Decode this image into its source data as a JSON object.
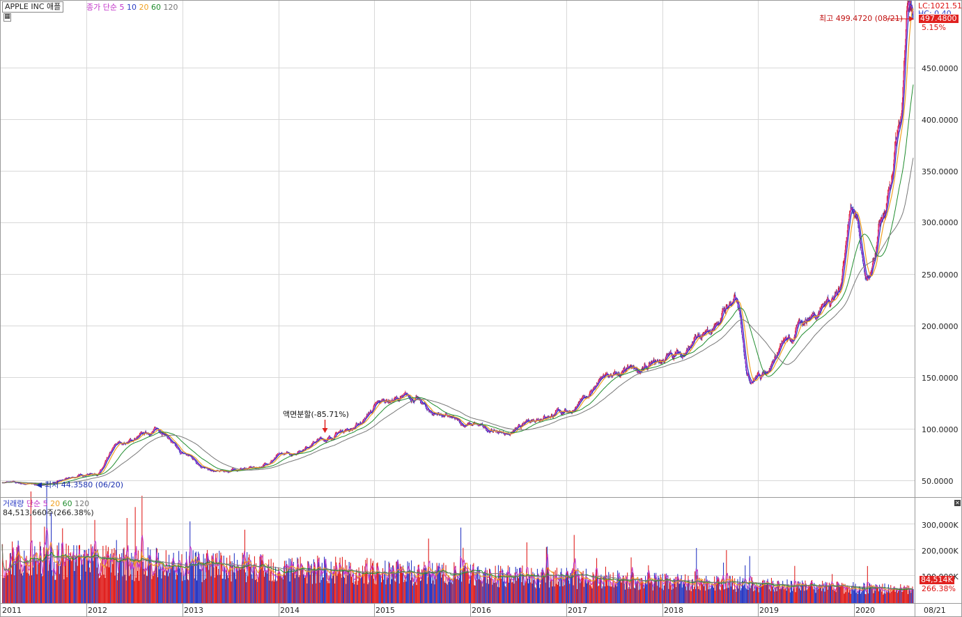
{
  "header": {
    "symbol": "APPLE INC  애플",
    "price_legend": {
      "label": "종가 단순",
      "ma": [
        "5",
        "10",
        "20",
        "60",
        "120"
      ]
    },
    "lc": "LC:1021.51",
    "hc": "HC: 0.40"
  },
  "price_panel": {
    "current_value": "497.4800",
    "current_change": "5.15%",
    "high_annotation": "최고 499.4720 (08/21)",
    "low_annotation": "최저 44.3580 (06/20)",
    "split_annotation": "액면분할(-85.71%)",
    "y_ticks": [
      "450.0000",
      "400.0000",
      "350.0000",
      "300.0000",
      "250.0000",
      "200.0000",
      "150.0000",
      "100.0000",
      "50.0000"
    ]
  },
  "volume_panel": {
    "legend": {
      "label": "거래량",
      "ma_label": "단순",
      "ma": [
        "5",
        "20",
        "60",
        "120"
      ]
    },
    "current_volume": "84,513,660주(266.38%)",
    "current_value": "84,514K",
    "current_ratio": "266.38%",
    "y_ticks": [
      "300,000K",
      "200,000K",
      "100,000K"
    ]
  },
  "x_axis": {
    "years": [
      "2011",
      "2012",
      "2013",
      "2014",
      "2015",
      "2016",
      "2017",
      "2018",
      "2019",
      "2020"
    ],
    "last_date": "08/21"
  },
  "colors": {
    "up": "#e0211f",
    "down": "#2b3bc4",
    "ma5": "#c236c9",
    "ma10": "#2b3bc4",
    "ma20": "#f0a020",
    "ma60": "#1f8c2d",
    "ma120": "#777777",
    "grid": "#d8d8d8",
    "highlight": "#e0211f"
  },
  "chart_data": {
    "type": "line",
    "title": "APPLE INC  애플",
    "x": [
      "2011-01",
      "2011-06",
      "2012-01",
      "2012-04",
      "2012-09",
      "2012-12",
      "2013-04",
      "2013-09",
      "2014-01",
      "2014-06",
      "2014-09",
      "2015-02",
      "2015-05",
      "2015-08",
      "2015-12",
      "2016-05",
      "2016-10",
      "2017-01",
      "2017-06",
      "2017-10",
      "2018-03",
      "2018-06",
      "2018-10",
      "2018-12",
      "2019-01",
      "2019-05",
      "2019-07",
      "2019-11",
      "2020-01",
      "2020-03",
      "2020-05",
      "2020-07",
      "2020-08"
    ],
    "series": [
      {
        "name": "종가",
        "values": [
          48,
          46,
          57,
          86,
          99,
          75,
          58,
          62,
          75,
          90,
          100,
          128,
          130,
          115,
          104,
          96,
          113,
          118,
          150,
          157,
          173,
          188,
          224,
          150,
          152,
          185,
          208,
          230,
          318,
          240,
          305,
          385,
          497
        ]
      }
    ],
    "ylim": [
      30,
      520
    ],
    "volume": {
      "ylim": [
        0,
        400000
      ]
    }
  }
}
